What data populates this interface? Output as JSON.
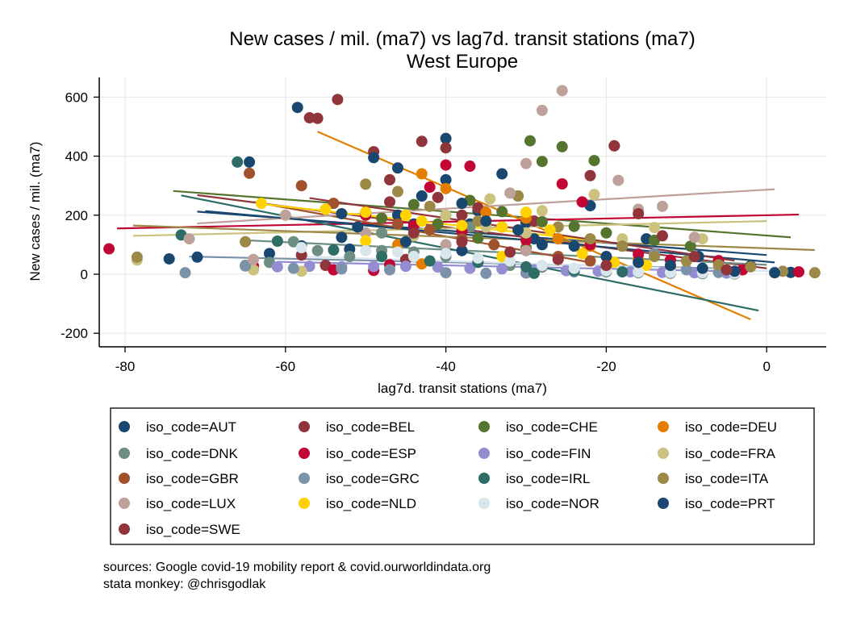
{
  "chart_data": {
    "type": "scatter",
    "title": "New cases / mil. (ma7) vs lag7d. transit stations (ma7)",
    "subtitle": "West Europe",
    "xlabel": "lag7d. transit stations (ma7)",
    "ylabel": "New cases / mil. (ma7)",
    "xlim": [
      -84,
      7
    ],
    "ylim": [
      -245,
      665
    ],
    "x_ticks": [
      -80,
      -60,
      -40,
      -20,
      0
    ],
    "y_ticks": [
      600,
      400,
      200,
      0,
      -200
    ],
    "grid": true,
    "legend_position": "bottom",
    "series": [
      {
        "name": "iso_code=AUT",
        "color": "#1a476f",
        "points": [
          [
            -58.5,
            565
          ],
          [
            -40,
            460
          ],
          [
            -33,
            340
          ],
          [
            -40,
            320
          ],
          [
            -46,
            360
          ],
          [
            -53,
            205
          ],
          [
            -36,
            215
          ],
          [
            -30,
            175
          ],
          [
            -22,
            232
          ],
          [
            -15,
            120
          ],
          [
            -8.5,
            60
          ],
          [
            -2,
            28
          ],
          [
            3,
            6
          ],
          [
            -46,
            200
          ],
          [
            -53,
            125
          ],
          [
            -58,
            96
          ],
          [
            -62,
            70
          ],
          [
            -71,
            58
          ],
          [
            -74.5,
            52
          ],
          [
            -52,
            85
          ],
          [
            -44,
            170
          ],
          [
            -37,
            170
          ],
          [
            -29,
            120
          ]
        ],
        "line": [
          [
            -71,
            212
          ],
          [
            0,
            65
          ]
        ]
      },
      {
        "name": "iso_code=BEL",
        "color": "#90353b",
        "points": [
          [
            -53.5,
            592
          ],
          [
            -56,
            528
          ],
          [
            -43,
            450
          ],
          [
            -40,
            428
          ],
          [
            -49,
            415
          ],
          [
            -47,
            320
          ],
          [
            -47,
            245
          ],
          [
            -41,
            260
          ],
          [
            -36,
            225
          ],
          [
            -29,
            180
          ],
          [
            -19,
            435
          ],
          [
            -22,
            334
          ],
          [
            -38,
            200
          ],
          [
            -33,
            160
          ],
          [
            -26,
            120
          ],
          [
            -45,
            50
          ],
          [
            -55,
            30
          ],
          [
            -58,
            65
          ]
        ],
        "line": [
          [
            -71,
            268
          ],
          [
            0,
            20
          ]
        ]
      },
      {
        "name": "iso_code=CHE",
        "color": "#55752f",
        "points": [
          [
            -29.5,
            452
          ],
          [
            -25.5,
            432
          ],
          [
            -21.5,
            385
          ],
          [
            -28,
            382
          ],
          [
            -31,
            265
          ],
          [
            -37,
            250
          ],
          [
            -33,
            212
          ],
          [
            -28,
            178
          ],
          [
            -24,
            162
          ],
          [
            -20,
            140
          ],
          [
            -14,
            115
          ],
          [
            -9.5,
            95
          ],
          [
            -44,
            236
          ],
          [
            -48,
            190
          ],
          [
            -41,
            170
          ],
          [
            -36,
            122
          ],
          [
            -30,
            90
          ]
        ],
        "line": [
          [
            -74,
            282
          ],
          [
            3,
            125
          ]
        ]
      },
      {
        "name": "iso_code=DEU",
        "color": "#e37e00",
        "points": [
          [
            -43,
            340
          ],
          [
            -40,
            290
          ],
          [
            -35,
            210
          ],
          [
            -30,
            190
          ],
          [
            -26,
            120
          ],
          [
            -22,
            95
          ],
          [
            -16,
            50
          ],
          [
            -12,
            25
          ],
          [
            -8,
            14
          ],
          [
            -4,
            5
          ],
          [
            -46,
            100
          ],
          [
            -43,
            35
          ]
        ],
        "line": [
          [
            -56,
            483
          ],
          [
            -2,
            -153
          ]
        ]
      },
      {
        "name": "iso_code=DNK",
        "color": "#6e8e84",
        "points": [
          [
            -65,
            30
          ],
          [
            -62,
            40
          ],
          [
            -59,
            110
          ],
          [
            -56,
            80
          ],
          [
            -52,
            60
          ],
          [
            -48,
            80
          ],
          [
            -44,
            75
          ],
          [
            -40,
            60
          ],
          [
            -36,
            42
          ],
          [
            -32,
            30
          ],
          [
            -28,
            24
          ],
          [
            -24,
            14
          ],
          [
            -20,
            8
          ],
          [
            -16,
            5
          ],
          [
            -12,
            3
          ],
          [
            -8,
            2
          ],
          [
            -4,
            1
          ],
          [
            -37,
            160
          ],
          [
            -48,
            140
          ]
        ],
        "line": [
          [
            -65,
            115
          ],
          [
            0,
            32
          ]
        ]
      },
      {
        "name": "iso_code=ESP",
        "color": "#c10534",
        "points": [
          [
            -82,
            86
          ],
          [
            -40,
            370
          ],
          [
            -37,
            366
          ],
          [
            -42,
            295
          ],
          [
            -25.5,
            306
          ],
          [
            -23,
            245
          ],
          [
            -50,
            200
          ],
          [
            -44,
            165
          ],
          [
            -38,
            145
          ],
          [
            -30,
            115
          ],
          [
            -22,
            100
          ],
          [
            -16,
            68
          ],
          [
            -12,
            48
          ],
          [
            -6,
            46
          ],
          [
            -3,
            15
          ],
          [
            4,
            8
          ],
          [
            -49,
            13
          ],
          [
            -54,
            15
          ],
          [
            -64,
            28
          ],
          [
            -47,
            32
          ]
        ],
        "line": [
          [
            -81,
            155
          ],
          [
            4,
            202
          ]
        ]
      },
      {
        "name": "iso_code=FIN",
        "color": "#938dd2",
        "points": [
          [
            -61,
            25
          ],
          [
            -57,
            27
          ],
          [
            -53,
            25
          ],
          [
            -49,
            26
          ],
          [
            -45,
            27
          ],
          [
            -41,
            24
          ],
          [
            -37,
            20
          ],
          [
            -33,
            18
          ],
          [
            -29,
            15
          ],
          [
            -25,
            12
          ],
          [
            -21,
            10
          ],
          [
            -17,
            8
          ],
          [
            -13,
            6
          ],
          [
            -9,
            5
          ],
          [
            -5,
            4
          ]
        ],
        "line": [
          [
            -61,
            42
          ],
          [
            -5,
            10
          ]
        ]
      },
      {
        "name": "iso_code=FRA",
        "color": "#cac27e",
        "points": [
          [
            -78.5,
            48
          ],
          [
            -58,
            10
          ],
          [
            -34.5,
            255
          ],
          [
            -21.5,
            270
          ],
          [
            -28,
            215
          ],
          [
            -40,
            200
          ],
          [
            -35,
            160
          ],
          [
            -30,
            140
          ],
          [
            -18,
            120
          ],
          [
            -14,
            158
          ],
          [
            -8,
            120
          ],
          [
            -44,
            130
          ],
          [
            -64,
            15
          ]
        ],
        "line": [
          [
            -79,
            130
          ],
          [
            0,
            180
          ]
        ]
      },
      {
        "name": "iso_code=GBR",
        "color": "#a0522d",
        "points": [
          [
            -64.5,
            342
          ],
          [
            -58,
            300
          ],
          [
            -54,
            240
          ],
          [
            -50,
            210
          ],
          [
            -46,
            170
          ],
          [
            -42,
            150
          ],
          [
            -38,
            120
          ],
          [
            -34,
            100
          ],
          [
            -30,
            80
          ],
          [
            -26,
            60
          ],
          [
            -22,
            45
          ]
        ],
        "line": [
          [
            -64,
            245
          ],
          [
            -22,
            40
          ]
        ]
      },
      {
        "name": "iso_code=GRC",
        "color": "#7b92a8",
        "points": [
          [
            -72.5,
            5
          ],
          [
            -65,
            28
          ],
          [
            -59,
            20
          ],
          [
            -53,
            18
          ],
          [
            -47,
            15
          ],
          [
            -40,
            5
          ],
          [
            -35,
            3
          ],
          [
            -30,
            4
          ],
          [
            -24,
            8
          ],
          [
            -18,
            95
          ],
          [
            -14,
            70
          ],
          [
            -10,
            15
          ],
          [
            -6,
            6
          ]
        ],
        "line": [
          [
            -72,
            60
          ],
          [
            -6,
            20
          ]
        ]
      },
      {
        "name": "iso_code=IRL",
        "color": "#2d6d66",
        "points": [
          [
            -66,
            380
          ],
          [
            -73,
            133
          ],
          [
            -61,
            112
          ],
          [
            -54,
            82
          ],
          [
            -48,
            60
          ],
          [
            -42,
            45
          ],
          [
            -36,
            40
          ],
          [
            -30,
            25
          ],
          [
            -29,
            3
          ],
          [
            -24,
            12
          ],
          [
            -18,
            8
          ]
        ],
        "line": [
          [
            -73,
            267
          ],
          [
            -1,
            -123
          ]
        ]
      },
      {
        "name": "iso_code=ITA",
        "color": "#9c8847",
        "points": [
          [
            -78.5,
            58
          ],
          [
            -65,
            110
          ],
          [
            -50,
            305
          ],
          [
            -46,
            280
          ],
          [
            -42,
            230
          ],
          [
            -36,
            180
          ],
          [
            -31,
            265
          ],
          [
            -26,
            160
          ],
          [
            -22,
            120
          ],
          [
            -18,
            95
          ],
          [
            -14,
            60
          ],
          [
            -10,
            45
          ],
          [
            -6,
            32
          ],
          [
            -2,
            25
          ],
          [
            2,
            10
          ],
          [
            6,
            5
          ]
        ],
        "line": [
          [
            -79,
            165
          ],
          [
            6,
            82
          ]
        ]
      },
      {
        "name": "iso_code=LUX",
        "color": "#bfa19c",
        "points": [
          [
            -25.5,
            622
          ],
          [
            -28,
            555
          ],
          [
            -30,
            375
          ],
          [
            -18.5,
            318
          ],
          [
            -32,
            275
          ],
          [
            -16,
            220
          ],
          [
            -13,
            230
          ],
          [
            -9,
            125
          ],
          [
            -64,
            50
          ],
          [
            -72,
            120
          ],
          [
            -60,
            200
          ],
          [
            -50,
            140
          ],
          [
            -40,
            100
          ],
          [
            -30,
            80
          ]
        ],
        "line": [
          [
            -71,
            172
          ],
          [
            1,
            288
          ]
        ]
      },
      {
        "name": "iso_code=NLD",
        "color": "#ffd200",
        "points": [
          [
            -63,
            240
          ],
          [
            -55,
            220
          ],
          [
            -50,
            210
          ],
          [
            -45,
            200
          ],
          [
            -43,
            180
          ],
          [
            -38,
            165
          ],
          [
            -33,
            160
          ],
          [
            -30,
            210
          ],
          [
            -27,
            150
          ],
          [
            -23,
            70
          ],
          [
            -19,
            40
          ],
          [
            -15,
            30
          ],
          [
            -50,
            113
          ],
          [
            -33,
            60
          ]
        ],
        "line": [
          [
            -63,
            238
          ],
          [
            -20,
            110
          ]
        ]
      },
      {
        "name": "iso_code=NOR",
        "color": "#d9e6eb",
        "points": [
          [
            -58,
            90
          ],
          [
            -50,
            80
          ],
          [
            -46,
            75
          ],
          [
            -40,
            70
          ],
          [
            -36,
            55
          ],
          [
            -32,
            45
          ],
          [
            -28,
            30
          ],
          [
            -24,
            20
          ],
          [
            -20,
            12
          ],
          [
            -16,
            8
          ],
          [
            -12,
            6
          ],
          [
            -8,
            5
          ],
          [
            -4,
            3
          ],
          [
            1,
            8
          ],
          [
            -44,
            60
          ]
        ],
        "line": [
          [
            -58,
            60
          ],
          [
            1,
            10
          ]
        ]
      },
      {
        "name": "iso_code=PRT",
        "color": "#1a476f",
        "points": [
          [
            -64.5,
            380
          ],
          [
            -49,
            395
          ],
          [
            -43,
            265
          ],
          [
            -38,
            240
          ],
          [
            -35,
            180
          ],
          [
            -31,
            150
          ],
          [
            -28,
            100
          ],
          [
            -24,
            95
          ],
          [
            -20,
            60
          ],
          [
            -16,
            40
          ],
          [
            -12,
            30
          ],
          [
            -8,
            20
          ],
          [
            -4,
            10
          ],
          [
            1,
            5
          ],
          [
            -51,
            160
          ],
          [
            -45,
            110
          ],
          [
            -38,
            80
          ]
        ],
        "line": [
          [
            -70,
            214
          ],
          [
            1,
            40
          ]
        ]
      },
      {
        "name": "iso_code=SWE",
        "color": "#90353b",
        "points": [
          [
            -57,
            530
          ],
          [
            -19,
            435
          ],
          [
            -16,
            205
          ],
          [
            -13,
            130
          ],
          [
            -9,
            60
          ],
          [
            -5,
            15
          ],
          [
            -44,
            140
          ],
          [
            -38,
            110
          ],
          [
            -32,
            75
          ],
          [
            -26,
            50
          ],
          [
            -20,
            30
          ]
        ],
        "line": [
          [
            -57,
            258
          ],
          [
            -4,
            46
          ]
        ]
      }
    ],
    "source_lines": [
      "sources: Google covid-19 mobility report & covid.ourworldindata.org",
      "stata monkey: @chrisgodlak"
    ]
  }
}
